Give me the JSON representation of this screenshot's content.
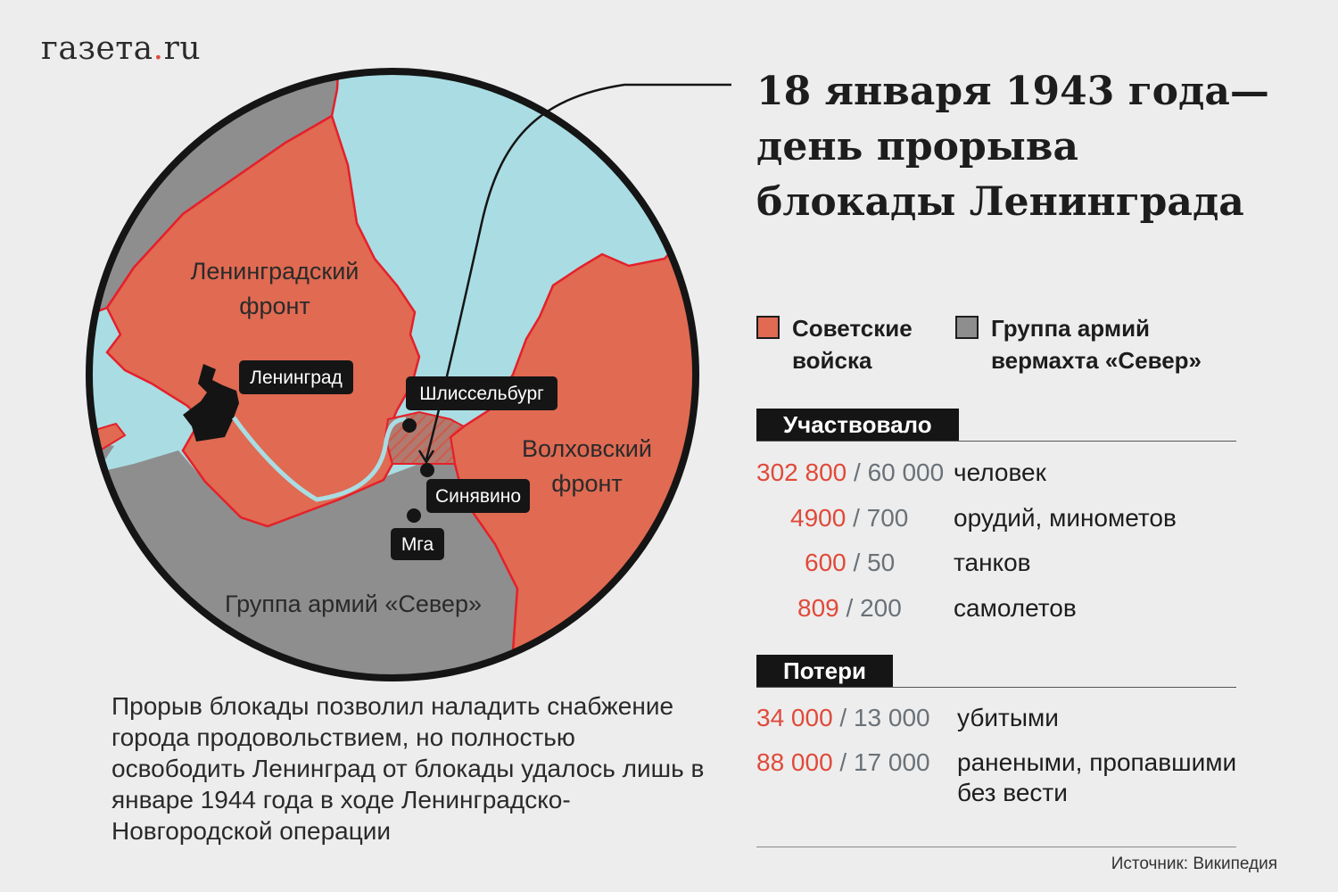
{
  "logo": {
    "prefix": "газета",
    "dot": ".",
    "suffix": "ru"
  },
  "title": {
    "line1": "18 января 1943 года—",
    "line2": "день прорыва",
    "line3": "блокады Ленинграда"
  },
  "map": {
    "labels": {
      "leningrad_front_1": "Ленинградский",
      "leningrad_front_2": "фронт",
      "volkhov_front_1": "Волховский",
      "volkhov_front_2": "фронт",
      "army_group_north": "Группа армий «Север»"
    },
    "cities": {
      "leningrad": "Ленинград",
      "shlisselburg": "Шлиссельбург",
      "sinyavino": "Синявино",
      "mga": "Мга"
    },
    "colors": {
      "soviet": "#e06a52",
      "german": "#8e8e8e",
      "water": "#a9dde3",
      "border": "#e4202a"
    }
  },
  "legend": {
    "soviet_line1": "Советские",
    "soviet_line2": "войска",
    "german_line1": "Группа армий",
    "german_line2": "вермахта «Север»"
  },
  "participated": {
    "label": "Участвовало",
    "rows": [
      {
        "soviet": "302 800",
        "sep": " / ",
        "german": "60 000",
        "desc": "человек"
      },
      {
        "soviet": "4900",
        "sep": " / ",
        "german": "700",
        "desc": "орудий, минометов"
      },
      {
        "soviet": "600",
        "sep": " / ",
        "german": "50",
        "desc": "танков"
      },
      {
        "soviet": "809",
        "sep": " / ",
        "german": "200",
        "desc": "самолетов"
      }
    ]
  },
  "losses": {
    "label": "Потери",
    "rows": [
      {
        "soviet": "34 000",
        "sep": " / ",
        "german": "13 000",
        "desc": "убитыми"
      },
      {
        "soviet": "88 000",
        "sep": " / ",
        "german": "17 000",
        "desc_line1": "ранеными, пропавшими",
        "desc_line2": "без вести"
      }
    ]
  },
  "bottom_text": "Прорыв блокады позволил наладить снабжение города продовольствием, но полностью освободить Ленинград от блокады удалось лишь в январе 1944 года в ходе Ленинградско-Новгородской операции",
  "source": "Источник: Википедия"
}
